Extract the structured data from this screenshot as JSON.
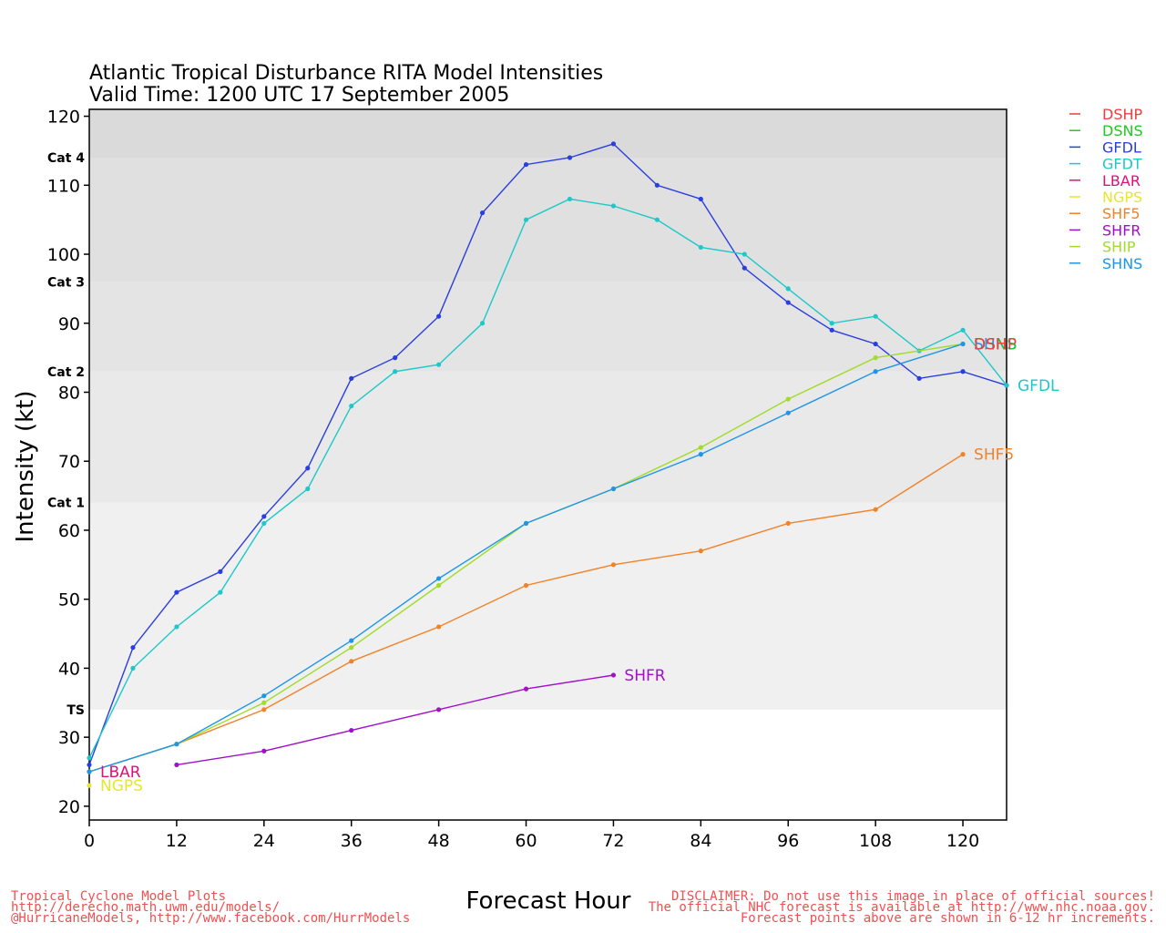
{
  "chart_data": {
    "type": "line",
    "title": "Atlantic Tropical Disturbance RITA Model Intensities",
    "subtitle": "Valid Time: 1200 UTC 17 September 2005",
    "xlabel": "Forecast Hour",
    "ylabel": "Intensity (kt)",
    "xlim": [
      0,
      126
    ],
    "ylim": [
      18,
      121
    ],
    "xticks": [
      0,
      12,
      24,
      36,
      48,
      60,
      72,
      84,
      96,
      108,
      120
    ],
    "yticks": [
      20,
      30,
      40,
      50,
      60,
      70,
      80,
      90,
      100,
      110,
      120
    ],
    "bands": [
      {
        "label": "",
        "from": 18,
        "to": 34,
        "color": "#ffffff"
      },
      {
        "label": "TS",
        "from": 34,
        "to": 64,
        "color": "#f0f0f0"
      },
      {
        "label": "Cat 1",
        "from": 64,
        "to": 83,
        "color": "#e9e9e9"
      },
      {
        "label": "Cat 2",
        "from": 83,
        "to": 96,
        "color": "#e4e4e4"
      },
      {
        "label": "Cat 3",
        "from": 96,
        "to": 114,
        "color": "#e0e0e0"
      },
      {
        "label": "Cat 4",
        "from": 114,
        "to": 121,
        "color": "#dadada"
      }
    ],
    "legend_position": "top-right",
    "series": [
      {
        "name": "DSHP",
        "color": "#f03c3c",
        "points": []
      },
      {
        "name": "DSNS",
        "color": "#20c820",
        "points": []
      },
      {
        "name": "GFDL",
        "color": "#2a3ee0",
        "label": "",
        "points": [
          [
            0,
            26
          ],
          [
            6,
            43
          ],
          [
            12,
            51
          ],
          [
            18,
            54
          ],
          [
            24,
            62
          ],
          [
            30,
            69
          ],
          [
            36,
            82
          ],
          [
            42,
            85
          ],
          [
            48,
            91
          ],
          [
            54,
            106
          ],
          [
            60,
            113
          ],
          [
            66,
            114
          ],
          [
            72,
            116
          ],
          [
            78,
            110
          ],
          [
            84,
            108
          ],
          [
            90,
            98
          ],
          [
            96,
            93
          ],
          [
            102,
            89
          ],
          [
            108,
            87
          ],
          [
            114,
            82
          ],
          [
            120,
            83
          ],
          [
            126,
            81
          ]
        ]
      },
      {
        "name": "GFDT",
        "color": "#1ec8c8",
        "label": "GFDL",
        "points": [
          [
            0,
            27
          ],
          [
            6,
            40
          ],
          [
            12,
            46
          ],
          [
            18,
            51
          ],
          [
            24,
            61
          ],
          [
            30,
            66
          ],
          [
            36,
            78
          ],
          [
            42,
            83
          ],
          [
            48,
            84
          ],
          [
            54,
            90
          ],
          [
            60,
            105
          ],
          [
            66,
            108
          ],
          [
            72,
            107
          ],
          [
            78,
            105
          ],
          [
            84,
            101
          ],
          [
            90,
            100
          ],
          [
            96,
            95
          ],
          [
            102,
            90
          ],
          [
            108,
            91
          ],
          [
            114,
            86
          ],
          [
            120,
            89
          ],
          [
            126,
            81
          ]
        ]
      },
      {
        "name": "LBAR",
        "color": "#e0107a",
        "label": "LBAR",
        "points": [
          [
            0,
            25
          ]
        ]
      },
      {
        "name": "NGPS",
        "color": "#e6e632",
        "label": "NGPS",
        "points": [
          [
            0,
            23
          ]
        ]
      },
      {
        "name": "SHF5",
        "color": "#f08228",
        "label": "SHF5",
        "points": [
          [
            0,
            25
          ],
          [
            12,
            29
          ],
          [
            24,
            34
          ],
          [
            36,
            41
          ],
          [
            48,
            46
          ],
          [
            60,
            52
          ],
          [
            72,
            55
          ],
          [
            84,
            57
          ],
          [
            96,
            61
          ],
          [
            108,
            63
          ],
          [
            120,
            71
          ]
        ]
      },
      {
        "name": "SHFR",
        "color": "#a010c8",
        "label": "SHFR",
        "points": [
          [
            12,
            26
          ],
          [
            24,
            28
          ],
          [
            36,
            31
          ],
          [
            48,
            34
          ],
          [
            60,
            37
          ],
          [
            72,
            39
          ]
        ]
      },
      {
        "name": "SHIP",
        "color": "#a0dc28",
        "label": "",
        "points": [
          [
            0,
            25
          ],
          [
            12,
            29
          ],
          [
            24,
            35
          ],
          [
            36,
            43
          ],
          [
            48,
            52
          ],
          [
            60,
            61
          ],
          [
            72,
            66
          ],
          [
            84,
            72
          ],
          [
            96,
            79
          ],
          [
            108,
            85
          ],
          [
            120,
            87
          ]
        ]
      },
      {
        "name": "SHNS",
        "color": "#1e96e6",
        "label": "SHNS",
        "points": [
          [
            0,
            25
          ],
          [
            12,
            29
          ],
          [
            24,
            36
          ],
          [
            36,
            44
          ],
          [
            48,
            53
          ],
          [
            60,
            61
          ],
          [
            72,
            66
          ],
          [
            84,
            71
          ],
          [
            96,
            77
          ],
          [
            108,
            83
          ],
          [
            120,
            87
          ]
        ]
      }
    ],
    "overlapping_end_labels": [
      {
        "text": "DSNS",
        "color": "#20c820",
        "x": 120,
        "y": 87
      },
      {
        "text": "DSHP",
        "color": "#f03c3c",
        "x": 120,
        "y": 87
      }
    ]
  },
  "footer": {
    "left": [
      "Tropical Cyclone Model Plots",
      "http://derecho.math.uwm.edu/models/",
      "@HurricaneModels, http://www.facebook.com/HurrModels"
    ],
    "right": [
      "DISCLAIMER: Do not use this image in place of official sources!",
      "The official NHC forecast is available at http://www.nhc.noaa.gov.",
      "Forecast points above are shown in 6-12 hr increments."
    ]
  }
}
